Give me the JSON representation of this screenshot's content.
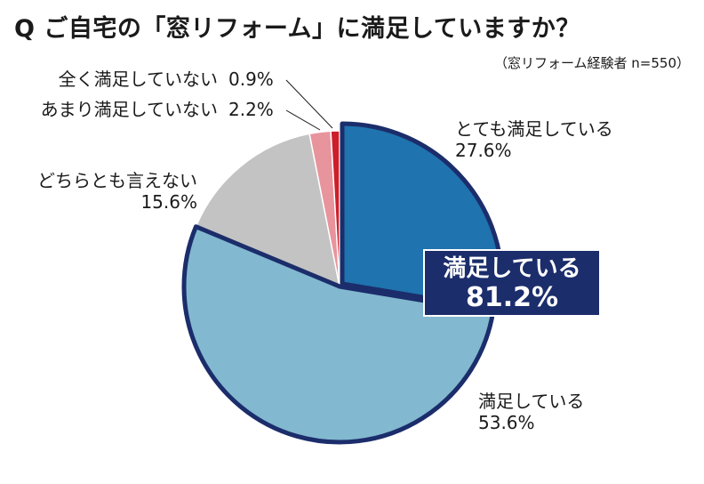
{
  "title": "Q ご自宅の「窓リフォーム」に満足していますか？",
  "subtitle": "（窓リフォーム経験者 n=550）",
  "chart_data": {
    "type": "pie",
    "title": "Q ご自宅の「窓リフォーム」に満足していますか？",
    "subtitle": "（窓リフォーム経験者 n=550）",
    "unit": "%",
    "start": "12 o'clock, clockwise",
    "slices": [
      {
        "label": "とても満足している",
        "value": 27.6,
        "value_text": "27.6%",
        "color": "#1f73ae"
      },
      {
        "label": "満足している",
        "value": 53.6,
        "value_text": "53.6%",
        "color": "#82b8d0"
      },
      {
        "label": "どちらとも言えない",
        "value": 15.6,
        "value_text": "15.6%",
        "color": "#c3c3c3"
      },
      {
        "label": "あまり満足していない",
        "value": 2.2,
        "value_text": "2.2%",
        "color": "#e8949c"
      },
      {
        "label": "全く満足していない",
        "value": 0.9,
        "value_text": "0.9%",
        "color": "#cc1f2a"
      }
    ],
    "callout": {
      "label": "満足している",
      "value": "81.2%",
      "color": "#1b2d6b"
    },
    "highlight_border_color": "#1b2d6b"
  }
}
